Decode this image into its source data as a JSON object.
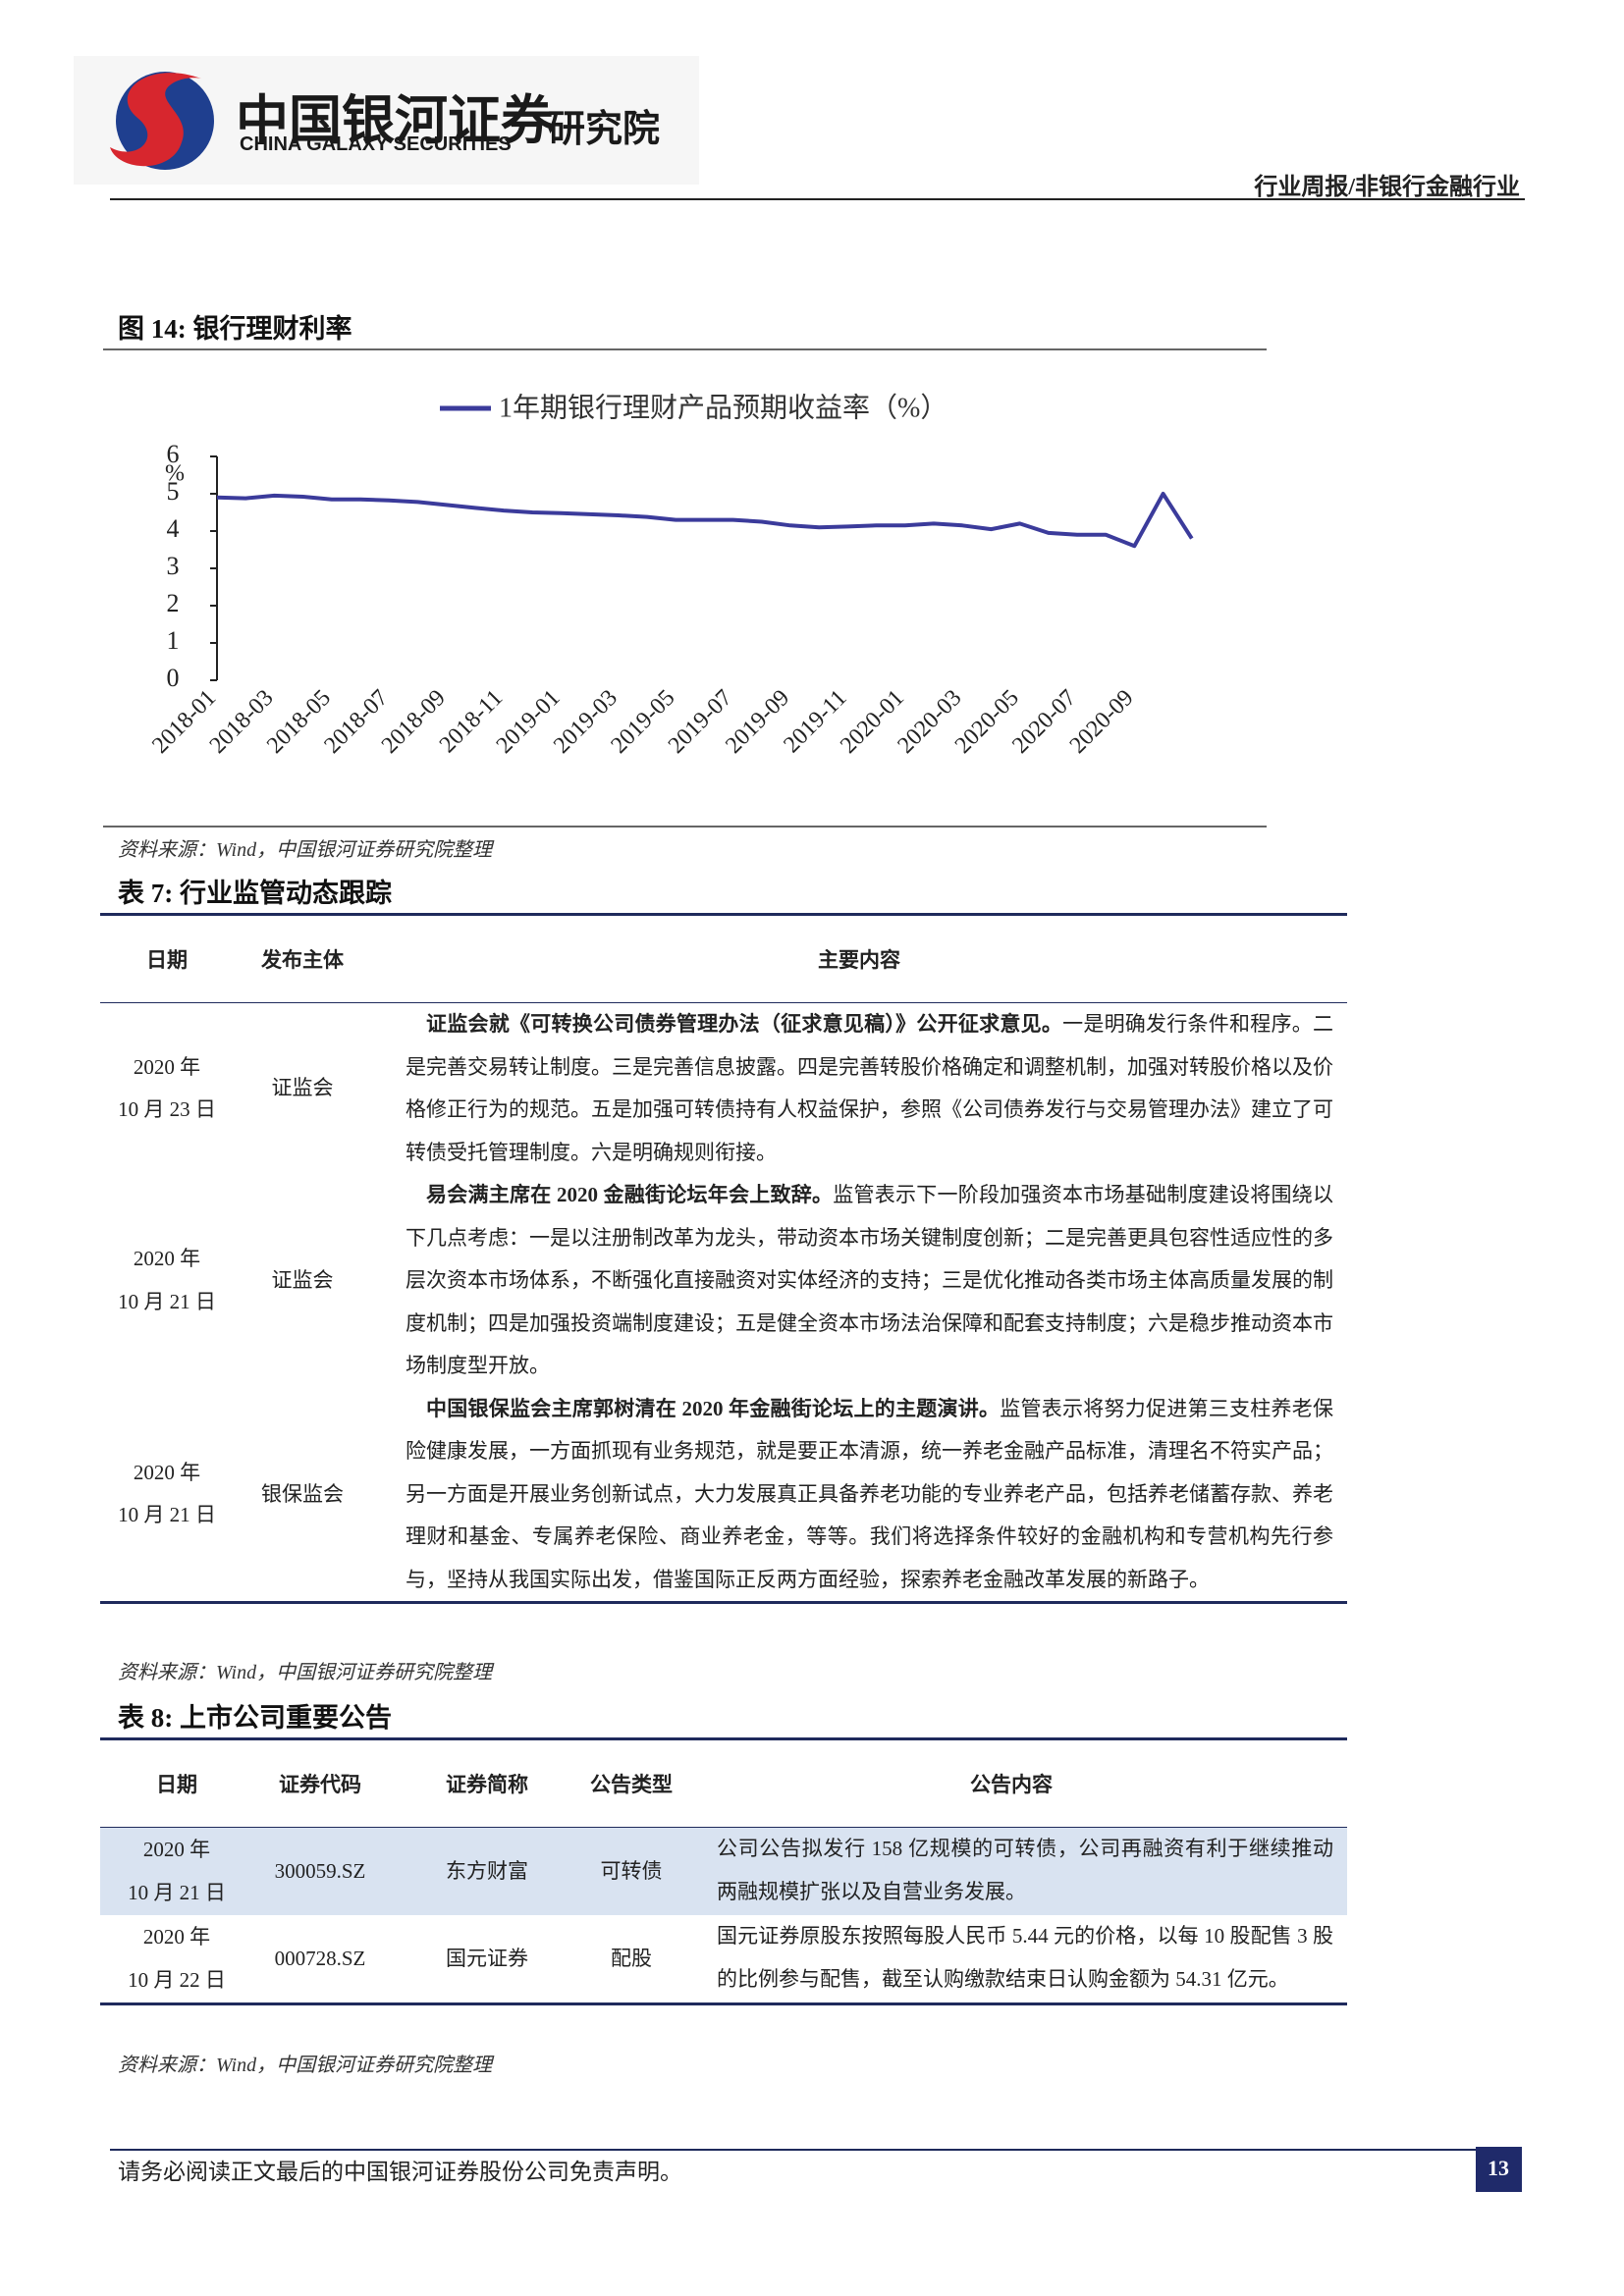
{
  "header": {
    "logo_cn": "中国银河证券",
    "logo_en": "CHINA GALAXY SECURITIES",
    "logo_sub": "研究院",
    "section": "行业周报/非银行金融行业"
  },
  "chart_data": {
    "type": "line",
    "title": "图 14: 银行理财利率",
    "ylabel": "%",
    "categories": [
      "2018-01",
      null,
      "2018-03",
      null,
      "2018-05",
      null,
      "2018-07",
      null,
      "2018-09",
      null,
      "2018-11",
      null,
      "2019-01",
      null,
      "2019-03",
      null,
      "2019-05",
      null,
      "2019-07",
      null,
      "2019-09",
      null,
      "2019-11",
      null,
      "2020-01",
      null,
      "2020-03",
      null,
      "2020-05",
      null,
      "2020-07",
      null,
      "2020-09",
      null,
      null
    ],
    "series": [
      {
        "name": "1年期银行理财产品预期收益率（%）",
        "color": "#3b3b9b",
        "values": [
          4.9,
          4.88,
          4.95,
          4.92,
          4.85,
          4.85,
          4.82,
          4.78,
          4.7,
          4.62,
          4.55,
          4.5,
          4.48,
          4.45,
          4.42,
          4.38,
          4.3,
          4.3,
          4.3,
          4.25,
          4.15,
          4.1,
          4.12,
          4.15,
          4.15,
          4.2,
          4.15,
          4.05,
          4.2,
          3.95,
          3.9,
          3.9,
          3.6,
          5.0,
          3.8
        ]
      }
    ],
    "ylim": [
      0,
      6
    ],
    "yticks": [
      0,
      1,
      2,
      3,
      4,
      5,
      6
    ],
    "grid": false,
    "source": "资料来源：Wind，中国银河证券研究院整理"
  },
  "table7": {
    "title": "表 7: 行业监管动态跟踪",
    "headers": [
      "日期",
      "发布主体",
      "主要内容"
    ],
    "rows": [
      [
        [
          "2020 年",
          "10 月 23 日"
        ],
        "证监会",
        {
          "lead": "证监会就《可转换公司债券管理办法（征求意见稿）》公开征求意见。",
          "text": "一是明确发行条件和程序。二是完善交易转让制度。三是完善信息披露。四是完善转股价格确定和调整机制，加强对转股价格以及价格修正行为的规范。五是加强可转债持有人权益保护，参照《公司债券发行与交易管理办法》建立了可转债受托管理制度。六是明确规则衔接。"
        }
      ],
      [
        [
          "2020 年",
          "10 月 21 日"
        ],
        "证监会",
        {
          "lead": "易会满主席在 2020 金融街论坛年会上致辞。",
          "text": "监管表示下一阶段加强资本市场基础制度建设将围绕以下几点考虑：一是以注册制改革为龙头，带动资本市场关键制度创新；二是完善更具包容性适应性的多层次资本市场体系，不断强化直接融资对实体经济的支持；三是优化推动各类市场主体高质量发展的制度机制；四是加强投资端制度建设；五是健全资本市场法治保障和配套支持制度；六是稳步推动资本市场制度型开放。"
        }
      ],
      [
        [
          "2020 年",
          "10 月 21 日"
        ],
        "银保监会",
        {
          "lead": "中国银保监会主席郭树清在 2020 年金融街论坛上的主题演讲。",
          "text": "监管表示将努力促进第三支柱养老保险健康发展，一方面抓现有业务规范，就是要正本清源，统一养老金融产品标准，清理名不符实产品；另一方面是开展业务创新试点，大力发展真正具备养老功能的专业养老产品，包括养老储蓄存款、养老理财和基金、专属养老保险、商业养老金，等等。我们将选择条件较好的金融机构和专营机构先行参与，坚持从我国实际出发，借鉴国际正反两方面经验，探索养老金融改革发展的新路子。"
        }
      ]
    ],
    "source": "资料来源：Wind，中国银河证券研究院整理"
  },
  "table8": {
    "title": "表 8: 上市公司重要公告",
    "headers": [
      "日期",
      "证券代码",
      "证券简称",
      "公告类型",
      "公告内容"
    ],
    "rows": [
      [
        [
          "2020 年",
          "10 月 21 日"
        ],
        "300059.SZ",
        "东方财富",
        "可转债",
        "公司公告拟发行 158 亿规模的可转债，公司再融资有利于继续推动两融规模扩张以及自营业务发展。"
      ],
      [
        [
          "2020 年",
          "10 月 22 日"
        ],
        "000728.SZ",
        "国元证券",
        "配股",
        "国元证券原股东按照每股人民币 5.44 元的价格，以每 10 股配售 3 股的比例参与配售，截至认购缴款结束日认购金额为 54.31 亿元。"
      ]
    ],
    "source": "资料来源：Wind，中国银河证券研究院整理"
  },
  "footer": {
    "disclaimer": "请务必阅读正文最后的中国银河证券股份公司免责声明。",
    "page": "13"
  }
}
